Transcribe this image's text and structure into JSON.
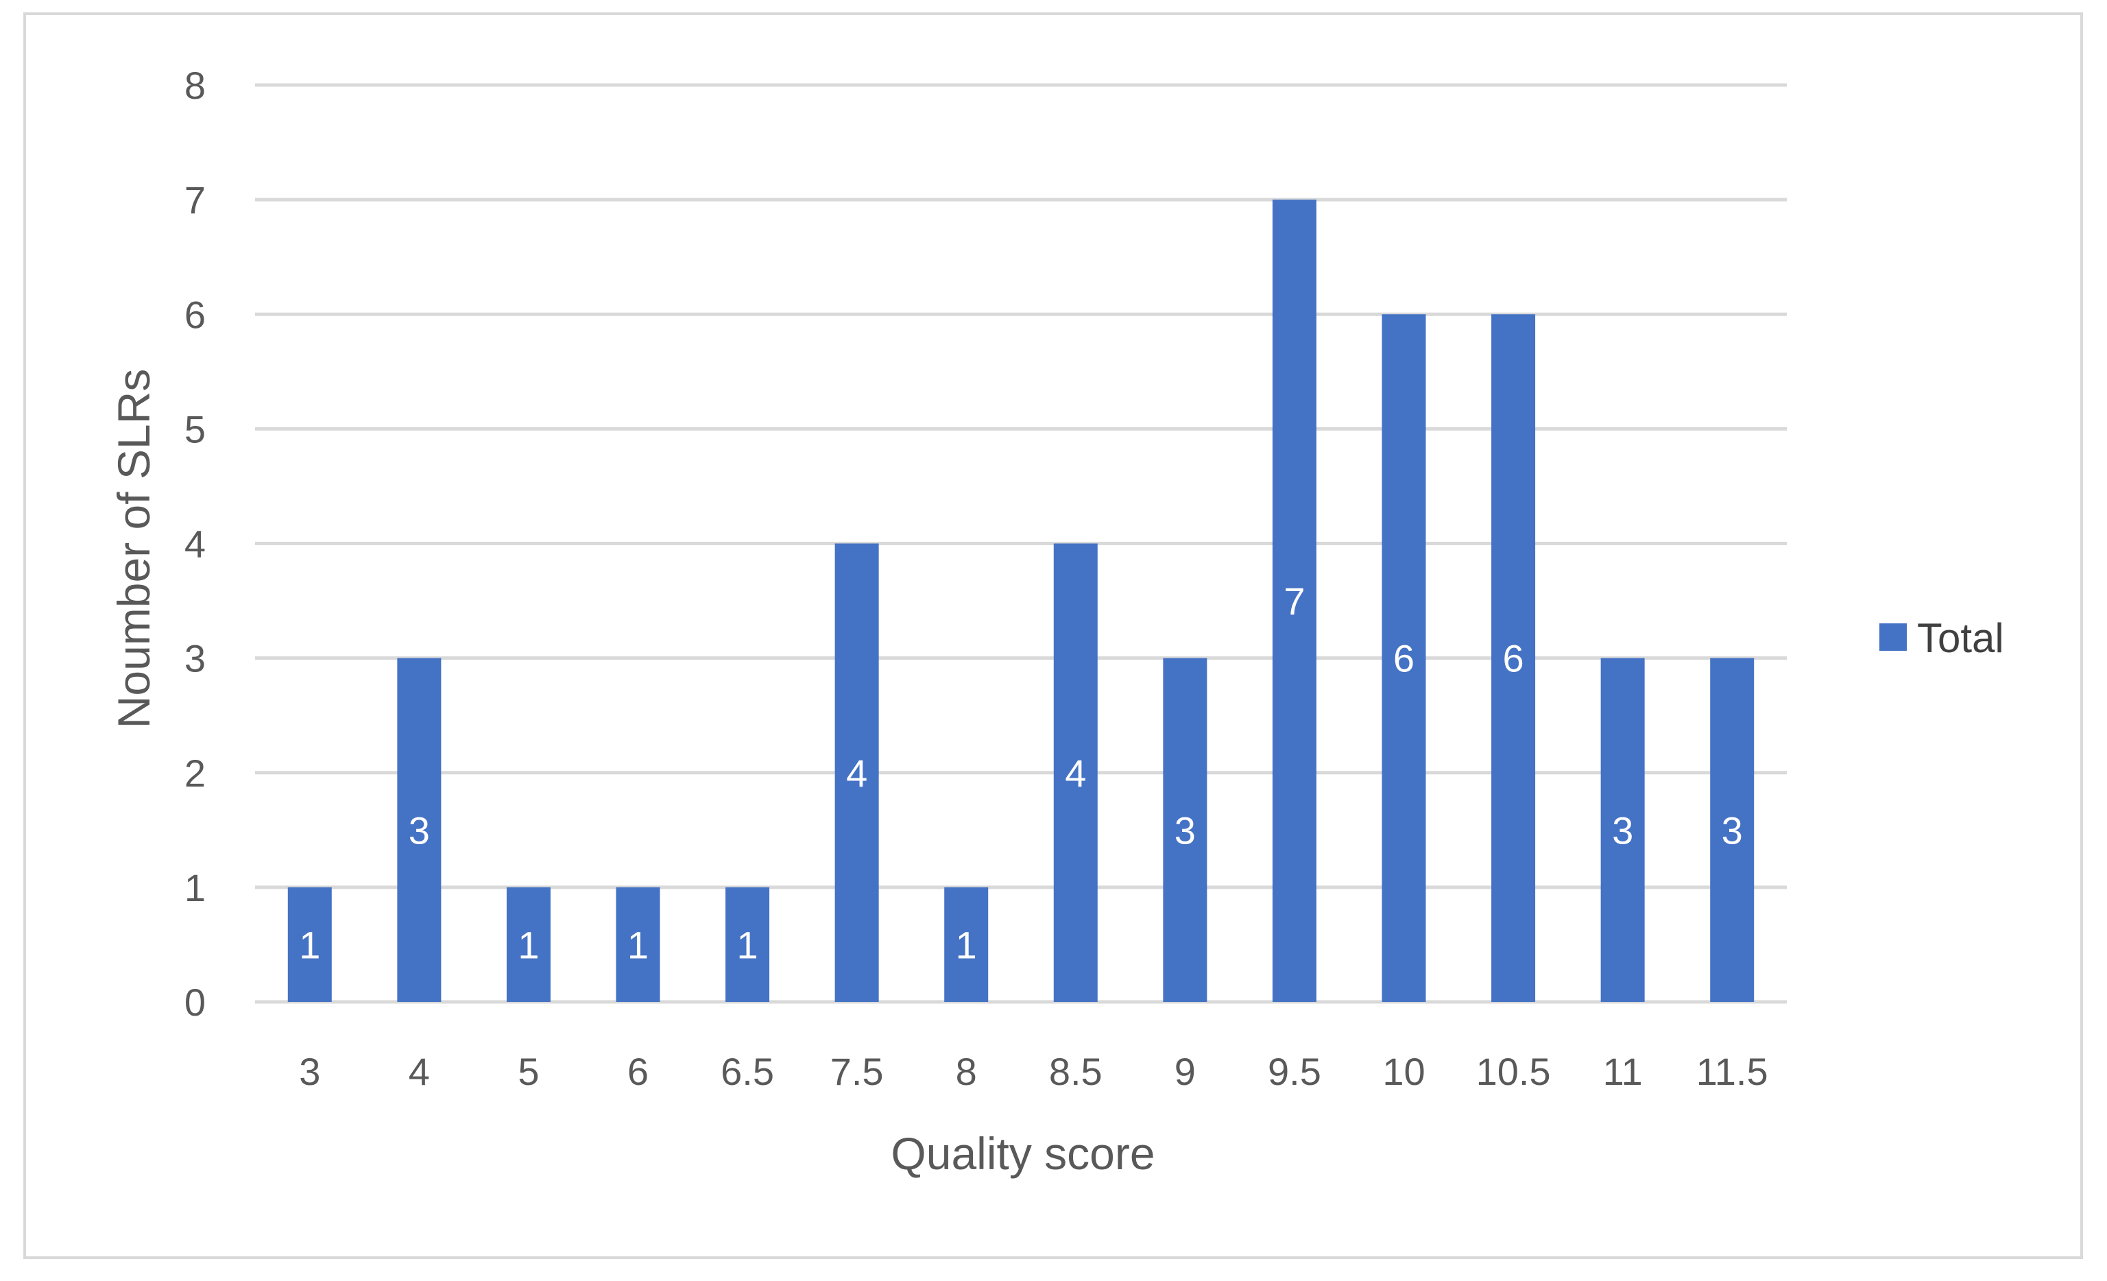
{
  "chart_data": {
    "type": "bar",
    "categories": [
      "3",
      "4",
      "5",
      "6",
      "6.5",
      "7.5",
      "8",
      "8.5",
      "9",
      "9.5",
      "10",
      "10.5",
      "11",
      "11.5"
    ],
    "series": [
      {
        "name": "Total",
        "values": [
          1,
          3,
          1,
          1,
          1,
          4,
          1,
          4,
          3,
          7,
          6,
          6,
          3,
          3
        ],
        "color": "#4472c4"
      }
    ],
    "xlabel": "Quality score",
    "ylabel": "Noumber of SLRs",
    "ylim": [
      0,
      8
    ],
    "yticks": [
      "0",
      "1",
      "2",
      "3",
      "4",
      "5",
      "6",
      "7",
      "8"
    ],
    "grid": true,
    "gridline_color": "#d9d9d9",
    "data_labels": true,
    "legend_position": "right"
  }
}
